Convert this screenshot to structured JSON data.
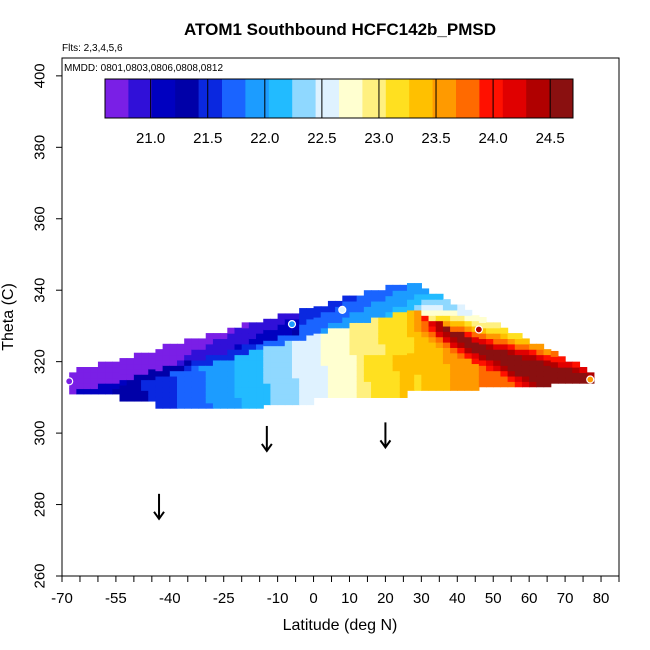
{
  "chart_data": {
    "type": "heatmap",
    "title": "ATOM1 Southbound HCFC142b_PMSD",
    "annotations": [
      "Flts: 2,3,4,5,6",
      "MMDD: 0801,0803,0806,0808,0812"
    ],
    "xlabel": "Latitude (deg N)",
    "ylabel": "Theta (C)",
    "xlim": [
      -70,
      85
    ],
    "ylim": [
      260,
      405
    ],
    "x_tick_labels": [
      "-70",
      "-55",
      "-40",
      "-25",
      "-10",
      "0",
      "10",
      "20",
      "30",
      "40",
      "50",
      "60",
      "70",
      "80"
    ],
    "x_tick_values": [
      -70,
      -55,
      -40,
      -25,
      -10,
      0,
      10,
      20,
      30,
      40,
      50,
      60,
      70,
      80
    ],
    "x_minor_ticks": [
      -65,
      -60,
      -50,
      -45,
      -35,
      -30,
      -20,
      -15,
      -5,
      5,
      15,
      25,
      35,
      45,
      55,
      65,
      75,
      85
    ],
    "y_tick_labels": [
      "260",
      "280",
      "300",
      "320",
      "340",
      "360",
      "380",
      "400"
    ],
    "y_tick_values": [
      260,
      280,
      300,
      320,
      340,
      360,
      380,
      400
    ],
    "colorbar": {
      "min": 20.6,
      "max": 24.7,
      "tick_labels": [
        "21.0",
        "21.5",
        "22.0",
        "22.5",
        "23.0",
        "23.5",
        "24.0",
        "24.5"
      ],
      "tick_values": [
        21.0,
        21.5,
        22.0,
        22.5,
        23.0,
        23.5,
        24.0,
        24.5
      ],
      "colors": [
        "#7a1fe6",
        "#3010d8",
        "#0000c0",
        "#0000a8",
        "#0a28e0",
        "#1a64ff",
        "#1c9cff",
        "#22bbff",
        "#8fd8ff",
        "#dff2ff",
        "#ffffd0",
        "#fff080",
        "#ffe020",
        "#ffc000",
        "#ff9a00",
        "#ff6a00",
        "#ff1000",
        "#e00000",
        "#b00000",
        "#8a1010"
      ]
    },
    "arrows": [
      {
        "lat": -43,
        "theta_top": 283,
        "theta_bottom": 276
      },
      {
        "lat": -13,
        "theta_top": 302,
        "theta_bottom": 295
      },
      {
        "lat": 20,
        "theta_top": 303,
        "theta_bottom": 296
      }
    ],
    "points": [
      {
        "lat": -68,
        "theta": 314.5,
        "value": 20.6
      },
      {
        "lat": -6,
        "theta": 330.5,
        "value": 22.0
      },
      {
        "lat": 8,
        "theta": 334.5,
        "value": 22.6
      },
      {
        "lat": 46,
        "theta": 329.0,
        "value": 24.4
      },
      {
        "lat": 77,
        "theta": 315.0,
        "value": 23.7
      }
    ]
  }
}
